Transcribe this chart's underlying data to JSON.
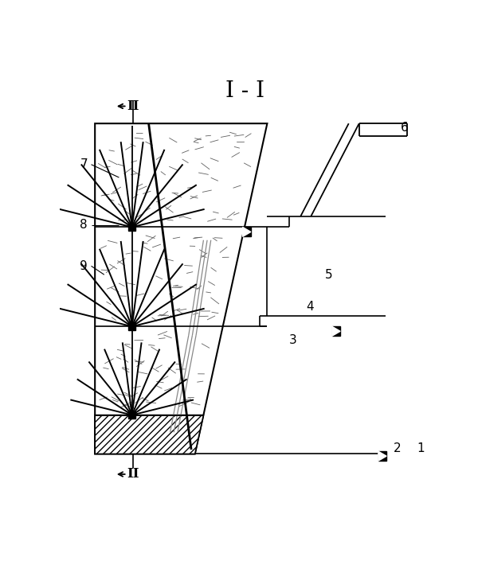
{
  "title": "I - I",
  "bg": "#ffffff",
  "lc": "#000000",
  "fw": 6.0,
  "fh": 7.05,
  "dpi": 100,
  "ML": 0.095,
  "MRT": 0.56,
  "MRB": 0.365,
  "MT": 0.87,
  "MB": 0.105,
  "L1": 0.63,
  "L2": 0.4,
  "LH": 0.195,
  "BCX": 0.195,
  "SQ": 0.018,
  "labels": {
    "1": [
      0.965,
      0.118,
      "left"
    ],
    "2": [
      0.9,
      0.118,
      "left"
    ],
    "3": [
      0.62,
      0.368,
      "left"
    ],
    "4": [
      0.665,
      0.445,
      "left"
    ],
    "5": [
      0.715,
      0.52,
      "left"
    ],
    "6": [
      0.92,
      0.86,
      "left"
    ],
    "7": [
      0.075,
      0.775,
      "right"
    ],
    "8": [
      0.075,
      0.635,
      "right"
    ],
    "9": [
      0.075,
      0.54,
      "right"
    ]
  }
}
